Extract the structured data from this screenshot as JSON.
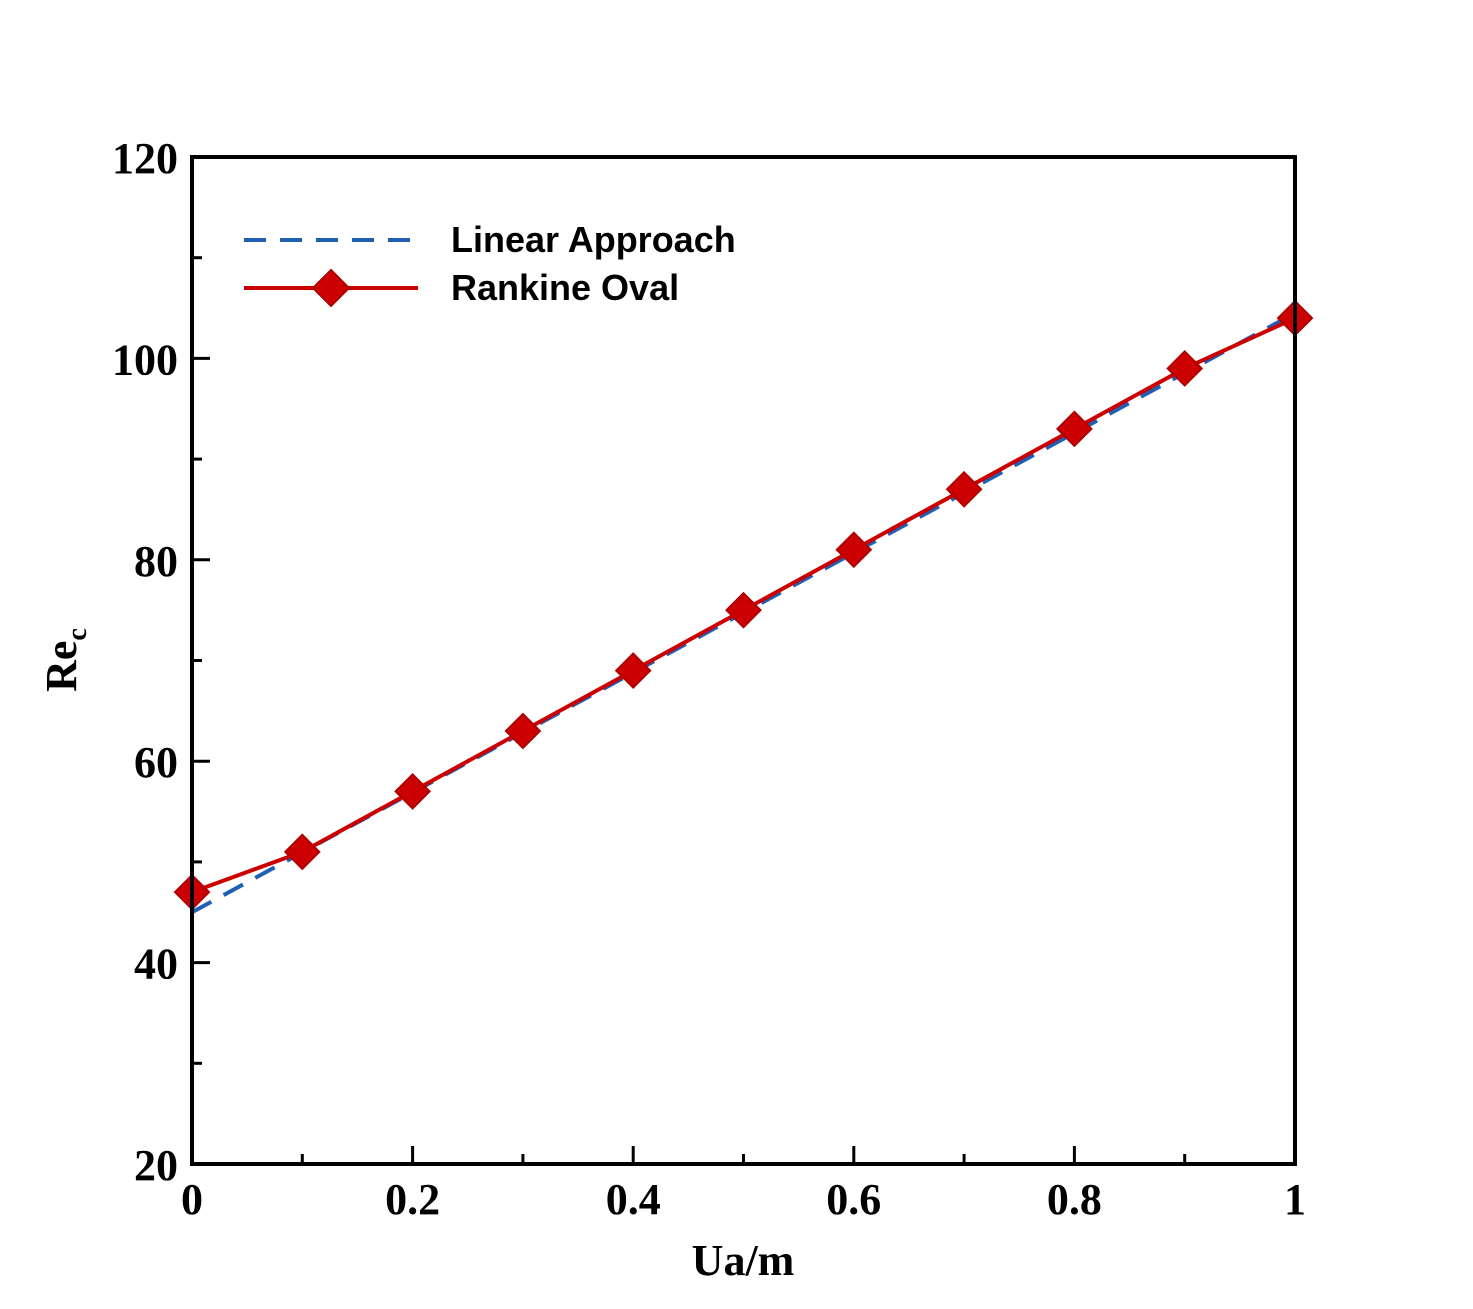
{
  "chart_data": {
    "type": "line",
    "title": "",
    "xlabel": "Ua/m",
    "ylabel_main": "Re",
    "ylabel_sub": "c",
    "xlim": [
      0,
      1
    ],
    "ylim": [
      20,
      120
    ],
    "x_major_ticks": [
      0,
      0.2,
      0.4,
      0.6,
      0.8,
      1
    ],
    "x_tick_labels": [
      "0",
      "0.2",
      "0.4",
      "0.6",
      "0.8",
      "1"
    ],
    "x_minor_ticks": [
      0.1,
      0.3,
      0.5,
      0.7,
      0.9
    ],
    "y_major_ticks": [
      20,
      40,
      60,
      80,
      100,
      120
    ],
    "y_tick_labels": [
      "20",
      "40",
      "60",
      "80",
      "100",
      "120"
    ],
    "y_minor_ticks": [
      30,
      50,
      70,
      90,
      110
    ],
    "grid": false,
    "legend_position": "top-left",
    "series": [
      {
        "name": "Linear Approach",
        "style": "dashed",
        "color": "#1f5fb4",
        "marker": "none",
        "x": [
          0,
          1
        ],
        "y": [
          45,
          104.5
        ]
      },
      {
        "name": "Rankine Oval",
        "style": "solid",
        "color": "#cc0000",
        "marker": "diamond",
        "x": [
          0,
          0.1,
          0.2,
          0.3,
          0.4,
          0.5,
          0.6,
          0.7,
          0.8,
          0.9,
          1.0
        ],
        "y": [
          47,
          51,
          57,
          63,
          69,
          75,
          81,
          87,
          93,
          99,
          104
        ]
      }
    ]
  }
}
